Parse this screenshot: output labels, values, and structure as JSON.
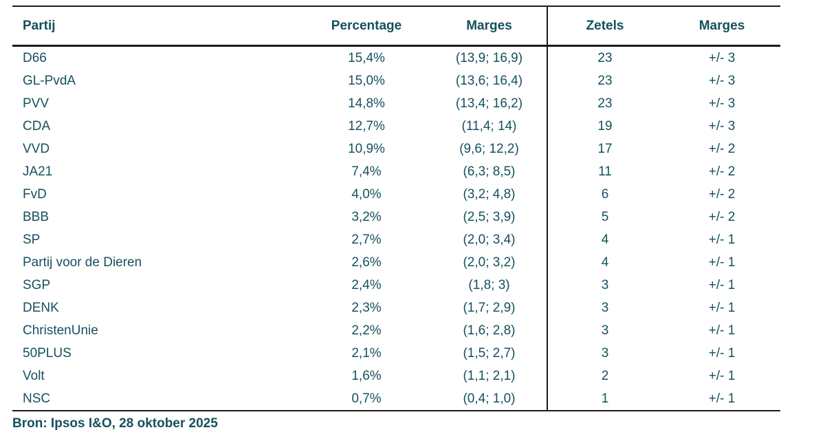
{
  "chart_data": {
    "type": "table",
    "columns": [
      "Partij",
      "Percentage",
      "Marges",
      "Zetels",
      "Marges"
    ],
    "rows": [
      {
        "partij": "D66",
        "percentage": "15,4%",
        "marges_percentage": "(13,9; 16,9)",
        "zetels": "23",
        "marges_zetels": "+/- 3"
      },
      {
        "partij": "GL-PvdA",
        "percentage": "15,0%",
        "marges_percentage": "(13,6; 16,4)",
        "zetels": "23",
        "marges_zetels": "+/- 3"
      },
      {
        "partij": "PVV",
        "percentage": "14,8%",
        "marges_percentage": "(13,4; 16,2)",
        "zetels": "23",
        "marges_zetels": "+/- 3"
      },
      {
        "partij": "CDA",
        "percentage": "12,7%",
        "marges_percentage": "(11,4; 14)",
        "zetels": "19",
        "marges_zetels": "+/- 3"
      },
      {
        "partij": "VVD",
        "percentage": "10,9%",
        "marges_percentage": "(9,6; 12,2)",
        "zetels": "17",
        "marges_zetels": "+/- 2"
      },
      {
        "partij": "JA21",
        "percentage": "7,4%",
        "marges_percentage": "(6,3; 8,5)",
        "zetels": "11",
        "marges_zetels": "+/- 2"
      },
      {
        "partij": "FvD",
        "percentage": "4,0%",
        "marges_percentage": "(3,2; 4,8)",
        "zetels": "6",
        "marges_zetels": "+/- 2"
      },
      {
        "partij": "BBB",
        "percentage": "3,2%",
        "marges_percentage": "(2,5; 3,9)",
        "zetels": "5",
        "marges_zetels": "+/- 2"
      },
      {
        "partij": "SP",
        "percentage": "2,7%",
        "marges_percentage": "(2,0; 3,4)",
        "zetels": "4",
        "marges_zetels": "+/- 1"
      },
      {
        "partij": "Partij voor de Dieren",
        "percentage": "2,6%",
        "marges_percentage": "(2,0; 3,2)",
        "zetels": "4",
        "marges_zetels": "+/- 1"
      },
      {
        "partij": "SGP",
        "percentage": "2,4%",
        "marges_percentage": "(1,8; 3)",
        "zetels": "3",
        "marges_zetels": "+/- 1"
      },
      {
        "partij": "DENK",
        "percentage": "2,3%",
        "marges_percentage": "(1,7; 2,9)",
        "zetels": "3",
        "marges_zetels": "+/- 1"
      },
      {
        "partij": "ChristenUnie",
        "percentage": "2,2%",
        "marges_percentage": "(1,6; 2,8)",
        "zetels": "3",
        "marges_zetels": "+/- 1"
      },
      {
        "partij": "50PLUS",
        "percentage": "2,1%",
        "marges_percentage": "(1,5; 2,7)",
        "zetels": "3",
        "marges_zetels": "+/- 1"
      },
      {
        "partij": "Volt",
        "percentage": "1,6%",
        "marges_percentage": "(1,1; 2,1)",
        "zetels": "2",
        "marges_zetels": "+/- 1"
      },
      {
        "partij": "NSC",
        "percentage": "0,7%",
        "marges_percentage": "(0,4; 1,0)",
        "zetels": "1",
        "marges_zetels": "+/- 1"
      }
    ],
    "source": "Bron: Ipsos I&O, 28 oktober 2025",
    "layout": {
      "divider_after_column": 3,
      "party_column_alignment": "left",
      "numeric_columns_alignment": "center",
      "grid": "horizontal rules top, under header, and bottom; single vertical divider"
    }
  },
  "colors": {
    "text": "#15505e",
    "line": "#1a1a1a",
    "background": "#ffffff"
  }
}
